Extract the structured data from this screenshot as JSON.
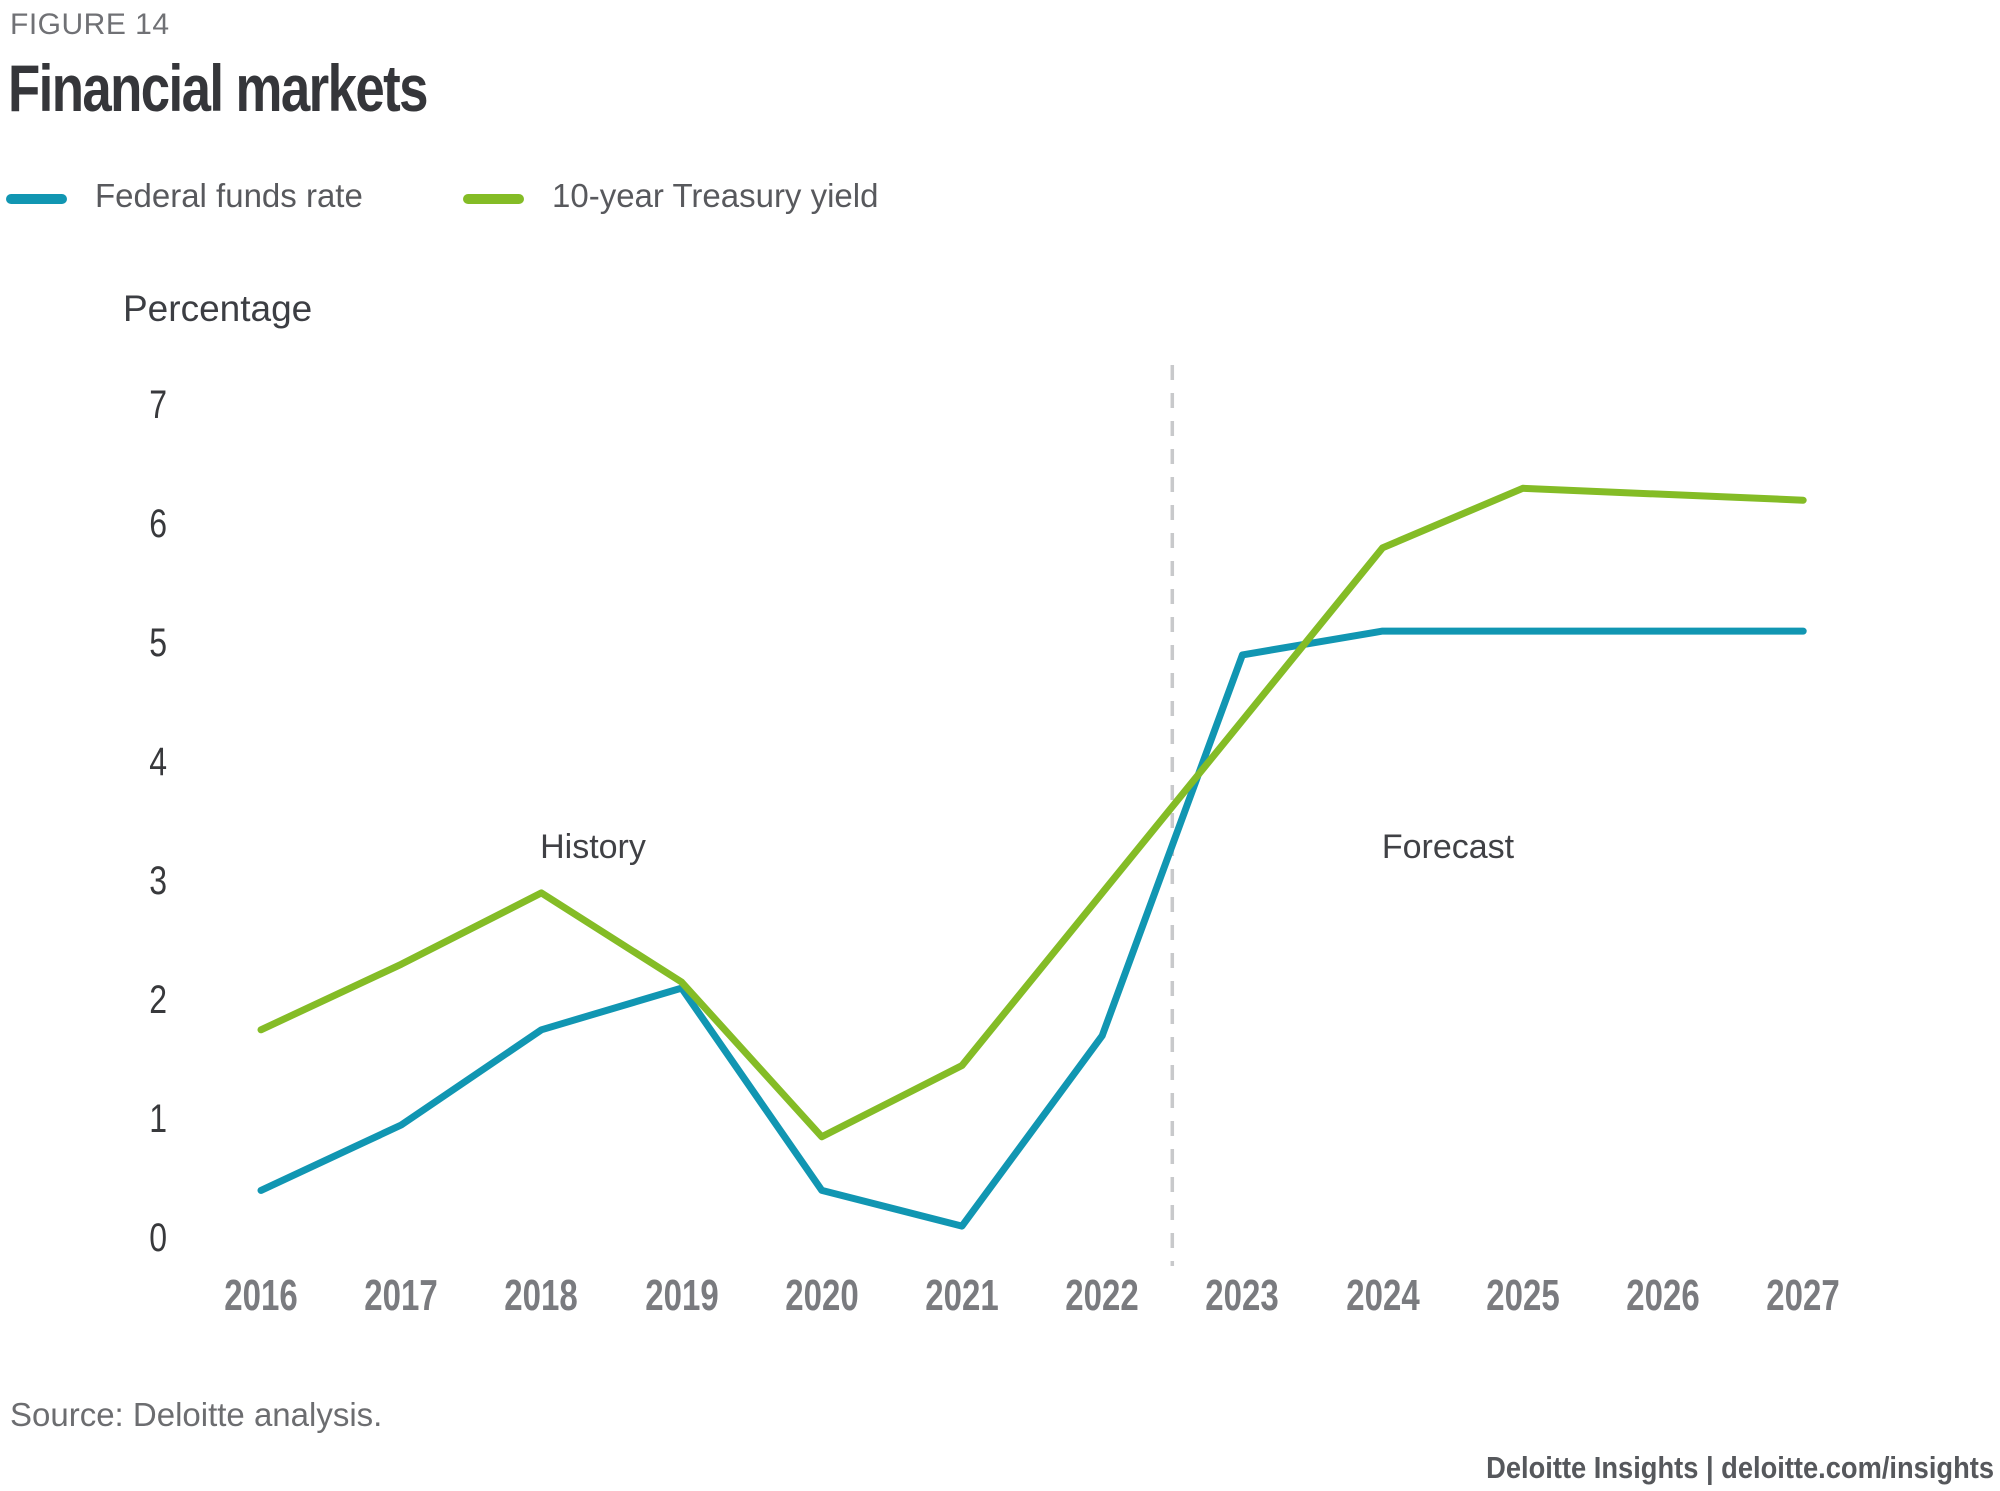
{
  "header": {
    "figure_label": "FIGURE 14",
    "title": "Financial markets"
  },
  "legend": [
    {
      "label": "Federal funds rate",
      "color": "#1196b2"
    },
    {
      "label": "10-year Treasury yield",
      "color": "#84bc26"
    }
  ],
  "annotations": {
    "history": "History",
    "forecast": "Forecast"
  },
  "footer": {
    "source": "Source: Deloitte analysis.",
    "brand": "Deloitte Insights | deloitte.com/insights"
  },
  "chart_data": {
    "type": "line",
    "title": "Financial markets",
    "ylabel": "Percentage",
    "ylim": [
      0,
      7
    ],
    "yticks": [
      7,
      6,
      5,
      4,
      3,
      2,
      1,
      0
    ],
    "grid": false,
    "legend_position": "top-left",
    "x": [
      2016,
      2017,
      2018,
      2019,
      2020,
      2021,
      2022,
      2023,
      2024,
      2025,
      2026,
      2027
    ],
    "separator_x": 2022.5,
    "separator_color": "#c8c9cb",
    "series": [
      {
        "name": "Federal funds rate",
        "color": "#1196b2",
        "values": [
          0.4,
          0.95,
          1.75,
          2.1,
          0.4,
          0.1,
          1.7,
          4.9,
          5.1,
          5.1,
          5.1,
          5.1
        ]
      },
      {
        "name": "10-year Treasury yield",
        "color": "#84bc26",
        "values": [
          1.75,
          2.3,
          2.9,
          2.15,
          0.85,
          1.45,
          2.9,
          4.35,
          5.8,
          6.3,
          6.25,
          6.2
        ]
      }
    ]
  }
}
